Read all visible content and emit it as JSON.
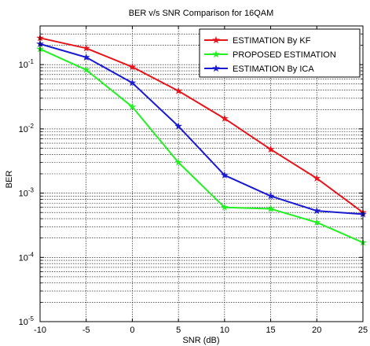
{
  "chart_data": {
    "type": "line",
    "title": "BER v/s SNR Comparison for 16QAM",
    "xlabel": "SNR (dB)",
    "ylabel": "BER",
    "xlim": [
      -10,
      25
    ],
    "ylim": [
      1e-05,
      0.4
    ],
    "yscale": "log",
    "grid": true,
    "legend_position": "top-right",
    "x_ticks": [
      -10,
      -5,
      0,
      5,
      10,
      15,
      20,
      25
    ],
    "x_tick_labels": [
      "-10",
      "-5",
      "0",
      "5",
      "10",
      "15",
      "20",
      "25"
    ],
    "y_ticks": [
      1e-05,
      0.0001,
      0.001,
      0.01,
      0.1
    ],
    "y_tick_exponents": [
      "-5",
      "-4",
      "-3",
      "-2",
      "-1"
    ],
    "y_tick_base": "10",
    "x": [
      -10,
      -5,
      0,
      5,
      10,
      15,
      20,
      25
    ],
    "series": [
      {
        "name": "ESTIMATION By KF",
        "color": "#e8141c",
        "values": [
          0.26,
          0.18,
          0.092,
          0.039,
          0.0145,
          0.0048,
          0.0017,
          0.0005
        ]
      },
      {
        "name": "PROPOSED ESTIMATION",
        "color": "#22f022",
        "values": [
          0.175,
          0.083,
          0.022,
          0.003,
          0.0006,
          0.00057,
          0.00035,
          0.00017
        ]
      },
      {
        "name": "ESTIMATION By ICA",
        "color": "#1a1ad2",
        "values": [
          0.21,
          0.13,
          0.052,
          0.011,
          0.0019,
          0.0009,
          0.00053,
          0.00047
        ]
      }
    ]
  }
}
